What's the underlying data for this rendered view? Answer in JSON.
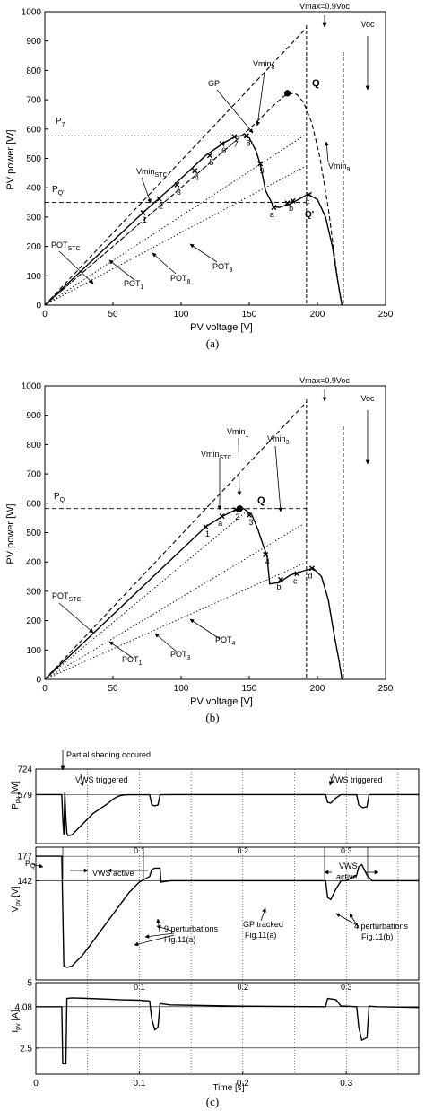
{
  "chart_data": [
    {
      "type": "line",
      "panel_label": "(a)",
      "xlabel": "PV voltage [V]",
      "ylabel": "PV power [W]",
      "xlim": [
        0,
        250
      ],
      "ylim": [
        0,
        1000
      ],
      "xticks": [
        0,
        50,
        100,
        150,
        200,
        250
      ],
      "yticks": [
        0,
        100,
        200,
        300,
        400,
        500,
        600,
        700,
        800,
        900,
        1000
      ],
      "grid": false,
      "series": [
        {
          "style": "solid",
          "x": [
            0,
            72,
            95,
            118,
            132,
            140,
            145,
            150,
            155,
            158,
            162,
            168,
            172,
            180,
            188,
            193,
            200,
            206,
            211,
            215,
            218
          ],
          "y": [
            0,
            315,
            410,
            510,
            555,
            575,
            578,
            570,
            525,
            480,
            390,
            335,
            333,
            345,
            365,
            378,
            360,
            300,
            200,
            80,
            0
          ]
        },
        {
          "style": "dashed",
          "x": [
            0,
            60,
            120,
            150,
            170,
            178,
            185,
            190,
            196,
            202,
            208,
            213,
            216,
            218
          ],
          "y": [
            0,
            240,
            480,
            600,
            690,
            722,
            718,
            690,
            620,
            500,
            330,
            150,
            50,
            0
          ]
        },
        {
          "style": "dashed",
          "x": [
            0,
            192
          ],
          "y": [
            0,
            945
          ]
        },
        {
          "style": "dotted",
          "x": [
            0,
            150
          ],
          "y": [
            0,
            600
          ]
        },
        {
          "style": "dotted",
          "x": [
            0,
            190
          ],
          "y": [
            0,
            577
          ]
        },
        {
          "style": "dotted",
          "x": [
            0,
            190
          ],
          "y": [
            0,
            470
          ]
        }
      ],
      "vlines": [
        {
          "x": 192,
          "style": "dashed",
          "label": "Vmax=0.9Voc"
        },
        {
          "x": 219,
          "style": "dashed",
          "label": "Voc"
        }
      ],
      "hlines": [
        {
          "y": 577,
          "style": "dotted",
          "label": "P7"
        },
        {
          "y": 350,
          "style": "dashed",
          "label": "PQ'"
        }
      ],
      "points": [
        {
          "label": "1",
          "x": 72,
          "y": 315
        },
        {
          "label": "2",
          "x": 84,
          "y": 362
        },
        {
          "label": "3",
          "x": 97,
          "y": 410
        },
        {
          "label": "4",
          "x": 110,
          "y": 458
        },
        {
          "label": "5",
          "x": 121,
          "y": 510
        },
        {
          "label": "6",
          "x": 130,
          "y": 550
        },
        {
          "label": "7",
          "x": 139,
          "y": 574
        },
        {
          "label": "8",
          "x": 148,
          "y": 577
        },
        {
          "label": "9",
          "x": 158,
          "y": 482
        },
        {
          "label": "a",
          "x": 168,
          "y": 333
        },
        {
          "label": "Q'",
          "x": 178,
          "y": 348
        },
        {
          "label": "b",
          "x": 182,
          "y": 355
        },
        {
          "label": "c",
          "x": 194,
          "y": 377
        }
      ],
      "markers": [
        {
          "label": "Q",
          "x": 178,
          "y": 722
        }
      ],
      "annotations": [
        "Vmax=0.9Voc",
        "Voc",
        "Q",
        "GP",
        "Vmin8",
        "Vmin9",
        "VminSTC",
        "P7",
        "PQ'",
        "POTSTC",
        "POT1",
        "POT8",
        "POT9",
        "Q'",
        "a",
        "b",
        "c",
        "1",
        "2",
        "3",
        "4",
        "5",
        "6",
        "7",
        "8",
        "9"
      ]
    },
    {
      "type": "line",
      "panel_label": "(b)",
      "xlabel": "PV voltage [V]",
      "ylabel": "PV power [W]",
      "xlim": [
        0,
        250
      ],
      "ylim": [
        0,
        1000
      ],
      "xticks": [
        0,
        50,
        100,
        150,
        200,
        250
      ],
      "yticks": [
        0,
        100,
        200,
        300,
        400,
        500,
        600,
        700,
        800,
        900,
        1000
      ],
      "grid": false,
      "series": [
        {
          "style": "solid",
          "x": [
            0,
            118,
            130,
            140,
            146,
            152,
            156,
            160,
            163,
            165,
            172,
            180,
            190,
            197,
            203,
            208,
            212,
            216,
            218
          ],
          "y": [
            0,
            520,
            555,
            578,
            582,
            560,
            515,
            460,
            420,
            325,
            330,
            355,
            370,
            378,
            350,
            270,
            160,
            60,
            0
          ]
        },
        {
          "style": "dashed",
          "x": [
            0,
            192
          ],
          "y": [
            0,
            945
          ]
        },
        {
          "style": "dotted",
          "x": [
            0,
            150
          ],
          "y": [
            0,
            580
          ]
        },
        {
          "style": "dotted",
          "x": [
            0,
            190
          ],
          "y": [
            0,
            530
          ]
        },
        {
          "style": "dotted",
          "x": [
            0,
            190
          ],
          "y": [
            0,
            395
          ]
        }
      ],
      "vlines": [
        {
          "x": 192,
          "style": "dashed",
          "label": "Vmax=0.9Voc"
        },
        {
          "x": 219,
          "style": "dashed",
          "label": "Voc"
        }
      ],
      "hlines": [
        {
          "y": 582,
          "style": "dashed",
          "label": "PQ"
        }
      ],
      "points": [
        {
          "label": "1",
          "x": 118,
          "y": 520
        },
        {
          "label": "a",
          "x": 130,
          "y": 556
        },
        {
          "label": "2",
          "x": 140,
          "y": 578
        },
        {
          "label": "3",
          "x": 150,
          "y": 560
        },
        {
          "label": "4",
          "x": 162,
          "y": 425
        },
        {
          "label": "b",
          "x": 173,
          "y": 340
        },
        {
          "label": "c",
          "x": 185,
          "y": 360
        },
        {
          "label": "d",
          "x": 196,
          "y": 378
        }
      ],
      "markers": [
        {
          "label": "Q",
          "x": 143,
          "y": 582
        }
      ],
      "annotations": [
        "Vmax=0.9Voc",
        "Voc",
        "Vmin1",
        "Vmin3",
        "VminSTC",
        "PQ",
        "Q",
        "POTSTC",
        "POT1",
        "POT3",
        "POT4",
        "a",
        "b",
        "c",
        "d",
        "1",
        "2",
        "3",
        "4"
      ]
    },
    {
      "type": "line",
      "panel_label": "(c)",
      "xlabel": "Time [s]",
      "xlim": [
        0,
        0.37
      ],
      "xticks": [
        0,
        0.1,
        0.2,
        0.3
      ],
      "grid": true,
      "subplots": [
        {
          "ylabel": "Ppv [W]",
          "ylim": [
            300,
            724
          ],
          "yticks": [
            724,
            579
          ],
          "ytick_extra": "PQ'",
          "series": [
            {
              "x": [
                0,
                0.025,
                0.026,
                0.027,
                0.028,
                0.029,
                0.03,
                0.031,
                0.035,
                0.04,
                0.045,
                0.05,
                0.055,
                0.06,
                0.065,
                0.07,
                0.075,
                0.08,
                0.085,
                0.09,
                0.1,
                0.11,
                0.112,
                0.115,
                0.118,
                0.12,
                0.13,
                0.2,
                0.28,
                0.282,
                0.285,
                0.29,
                0.295,
                0.3,
                0.31,
                0.312,
                0.316,
                0.32,
                0.322,
                0.33,
                0.37
              ],
              "y": [
                579,
                579,
                440,
                350,
                590,
                440,
                360,
                345,
                350,
                380,
                410,
                440,
                470,
                490,
                510,
                530,
                555,
                570,
                577,
                578,
                578,
                578,
                520,
                515,
                520,
                578,
                579,
                579,
                579,
                535,
                530,
                560,
                579,
                578,
                578,
                520,
                505,
                510,
                579,
                579,
                579
              ]
            }
          ],
          "annotations": [
            "Partial shading occured",
            "VWS triggered",
            "VWS triggered"
          ]
        },
        {
          "ylabel": "Vpv [V]",
          "ylim": [
            0,
            190
          ],
          "yticks": [
            177,
            142
          ],
          "series": [
            {
              "x": [
                0,
                0.025,
                0.027,
                0.03,
                0.035,
                0.04,
                0.045,
                0.05,
                0.055,
                0.06,
                0.065,
                0.07,
                0.075,
                0.08,
                0.085,
                0.09,
                0.1,
                0.11,
                0.112,
                0.115,
                0.12,
                0.121,
                0.13,
                0.2,
                0.25,
                0.28,
                0.282,
                0.285,
                0.29,
                0.295,
                0.3,
                0.31,
                0.312,
                0.315,
                0.32,
                0.325,
                0.33,
                0.37
              ],
              "y": [
                177,
                177,
                20,
                18,
                20,
                28,
                35,
                45,
                55,
                65,
                75,
                85,
                95,
                105,
                115,
                125,
                140,
                148,
                158,
                160,
                160,
                140,
                142,
                142,
                142,
                142,
                118,
                115,
                130,
                142,
                142,
                150,
                162,
                165,
                150,
                142,
                142,
                142
              ]
            }
          ],
          "annotations": [
            "VWS active",
            "VWS",
            "active",
            "9 perturbations",
            "Fig.11(a)",
            "GP tracked",
            "Fig.11(a)",
            "4 perturbations",
            "Fig.11(b)"
          ]
        },
        {
          "ylabel": "Ipv [A]",
          "ylim": [
            1.5,
            5
          ],
          "yticks": [
            5,
            4.08,
            2.5
          ],
          "series": [
            {
              "x": [
                0,
                0.025,
                0.026,
                0.029,
                0.03,
                0.035,
                0.05,
                0.08,
                0.1,
                0.11,
                0.112,
                0.115,
                0.118,
                0.12,
                0.13,
                0.2,
                0.28,
                0.282,
                0.29,
                0.295,
                0.3,
                0.31,
                0.312,
                0.315,
                0.32,
                0.322,
                0.33,
                0.37
              ],
              "y": [
                4.08,
                4.08,
                1.9,
                1.9,
                4.4,
                4.42,
                4.4,
                4.35,
                4.33,
                4.3,
                3.6,
                3.2,
                3.3,
                4.2,
                4.15,
                4.1,
                4.08,
                4.4,
                4.35,
                4.1,
                4.1,
                4.08,
                3.3,
                2.8,
                2.9,
                4.1,
                4.08,
                4.05
              ]
            }
          ]
        }
      ]
    }
  ],
  "labels": {
    "a": {
      "xlabel": "PV voltage [V]",
      "ylabel": "PV power [W]",
      "caption": "(a)",
      "vmax": "Vmax=0.9Voc",
      "voc": "Voc",
      "q": "Q",
      "gp": "GP",
      "vmin8": "Vmin",
      "vmin8_sub": "8",
      "vmin9": "Vmin",
      "vmin9_sub": "9",
      "vminstc": "Vmin",
      "vminstc_sub": "STC",
      "p7": "P",
      "p7_sub": "7",
      "pq": "P",
      "pq_sub": "Q'",
      "potstc": "POT",
      "potstc_sub": "STC",
      "pot1": "POT",
      "pot1_sub": "1",
      "pot8": "POT",
      "pot8_sub": "8",
      "pot9": "POT",
      "pot9_sub": "9",
      "qprime": "Q'"
    },
    "b": {
      "xlabel": "PV voltage [V]",
      "ylabel": "PV power [W]",
      "caption": "(b)",
      "vmax": "Vmax=0.9Voc",
      "voc": "Voc",
      "q": "Q",
      "vmin1": "Vmin",
      "vmin1_sub": "1",
      "vmin3": "Vmin",
      "vmin3_sub": "3",
      "vminstc": "Vmin",
      "vminstc_sub": "STC",
      "pq": "P",
      "pq_sub": "Q",
      "potstc": "POT",
      "potstc_sub": "STC",
      "pot1": "POT",
      "pot1_sub": "1",
      "pot3": "POT",
      "pot3_sub": "3",
      "pot4": "POT",
      "pot4_sub": "4"
    },
    "c": {
      "xlabel": "Time [s]",
      "caption": "(c)",
      "p_ylabel": "P",
      "p_ylabel_sub": "pv",
      "p_ylabel_unit": " [W]",
      "v_ylabel": "V",
      "v_ylabel_sub": "pv",
      "v_ylabel_unit": " [V]",
      "i_ylabel": "I",
      "i_ylabel_sub": "pv",
      "i_ylabel_unit": " [A]",
      "pq_tick": "P",
      "pq_tick_sub": "Q'",
      "partial_shading": "Partial shading occured",
      "vws_triggered_1": "VWS triggered",
      "vws_triggered_2": "VWS triggered",
      "vws_active": "VWS active",
      "vws2_line1": "VWS",
      "vws2_line2": "active",
      "perturb9": "9 perturbations",
      "perturb9_ref": "Fig.11(a)",
      "gp_tracked": "GP tracked",
      "gp_ref": "Fig.11(a)",
      "perturb4": "4 perturbations",
      "perturb4_ref": "Fig.11(b)"
    }
  }
}
